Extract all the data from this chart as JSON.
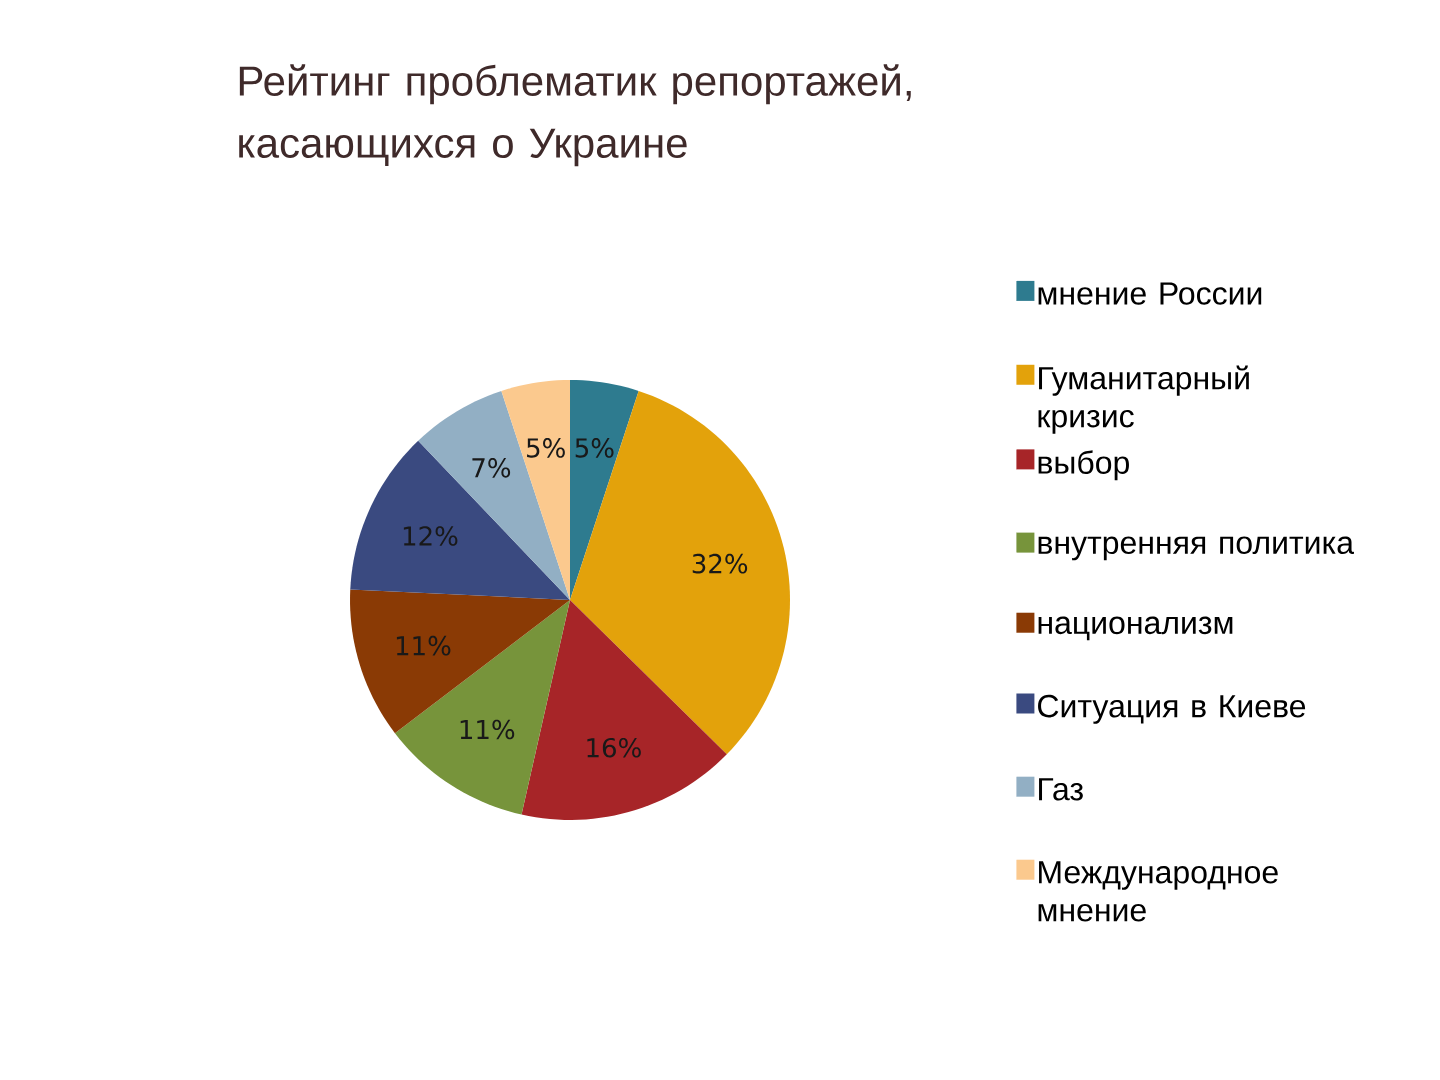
{
  "chart_data": {
    "type": "pie",
    "title": "Рейтинг проблематик репортажей, касающихся о Украине",
    "categories": [
      "мнение России",
      "Гуманитарный кризис",
      "выбор",
      "внутренняя политика",
      "национализм",
      "Ситуация в Киеве",
      "Газ",
      "Международное мнение"
    ],
    "values": [
      5,
      32,
      16,
      11,
      11,
      12,
      7,
      5
    ],
    "colors": [
      "#2e7b8f",
      "#e3a20b",
      "#a72528",
      "#77943b",
      "#8a3a05",
      "#3a4a80",
      "#92afc4",
      "#fbc98e"
    ],
    "value_labels": [
      "5%",
      "32%",
      "16%",
      "11%",
      "11%",
      "12%",
      "7%",
      "5%"
    ],
    "legend": "right"
  }
}
